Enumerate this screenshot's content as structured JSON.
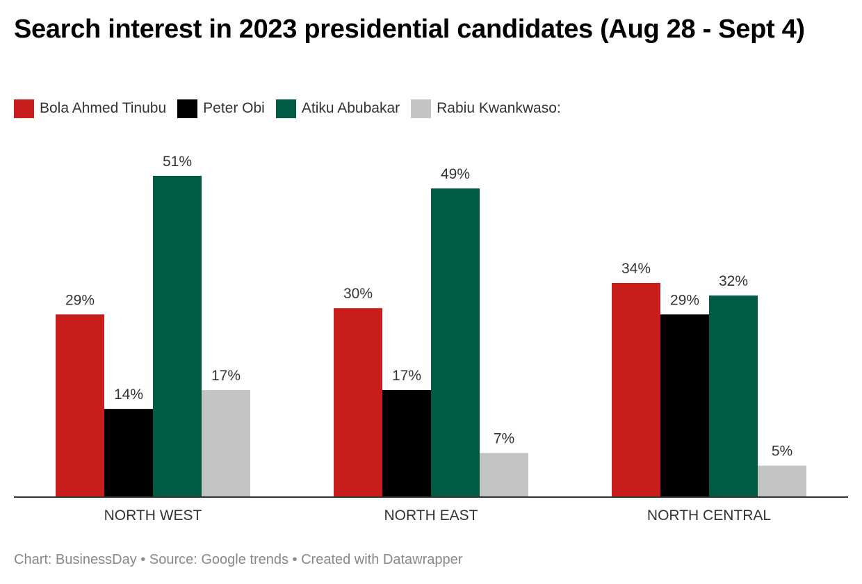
{
  "title": "Search interest in 2023 presidential candidates (Aug 28 - Sept 4)",
  "footer": "Chart: BusinessDay • Source: Google trends • Created with Datawrapper",
  "chart_data": {
    "type": "bar",
    "title": "Search interest in 2023 presidential candidates (Aug 28 - Sept 4)",
    "xlabel": "",
    "ylabel": "",
    "ylim": [
      0,
      55
    ],
    "grid": false,
    "legend_position": "top-left",
    "categories": [
      "NORTH WEST",
      "NORTH EAST",
      "NORTH CENTRAL"
    ],
    "series": [
      {
        "name": "Bola Ahmed Tinubu",
        "color": "#c71e1d",
        "values": [
          29,
          30,
          34
        ],
        "labels": [
          "29%",
          "30%",
          "34%"
        ]
      },
      {
        "name": "Peter Obi",
        "color": "#000000",
        "values": [
          14,
          17,
          29
        ],
        "labels": [
          "14%",
          "17%",
          "29%"
        ]
      },
      {
        "name": "Atiku Abubakar",
        "color": "#005c45",
        "values": [
          51,
          49,
          32
        ],
        "labels": [
          "51%",
          "49%",
          "32%"
        ]
      },
      {
        "name": "Rabiu Kwankwaso:",
        "color": "#c4c4c4",
        "values": [
          17,
          7,
          5
        ],
        "labels": [
          "17%",
          "7%",
          "5%"
        ]
      }
    ]
  }
}
